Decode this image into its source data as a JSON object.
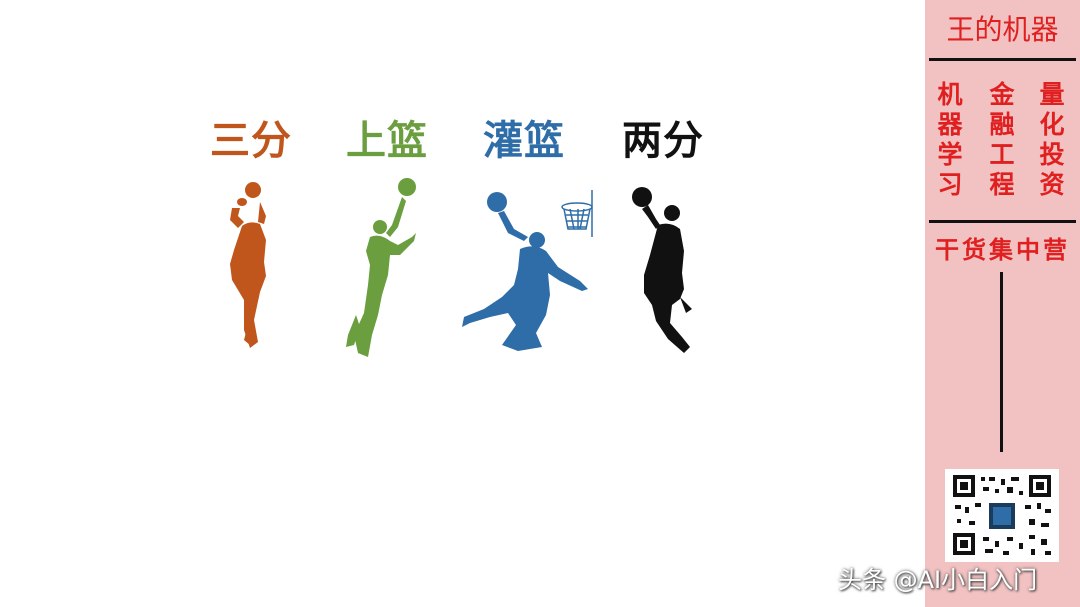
{
  "slide": {
    "labels": [
      {
        "text": "三分",
        "color": "#c0561c"
      },
      {
        "text": "上篮",
        "color": "#6a9e3f"
      },
      {
        "text": "灌篮",
        "color": "#2e6da8"
      },
      {
        "text": "两分",
        "color": "#111111"
      }
    ],
    "figures": [
      {
        "name": "three-point-player-icon",
        "color": "#c0561c"
      },
      {
        "name": "layup-player-icon",
        "color": "#6a9e3f"
      },
      {
        "name": "dunk-player-icon",
        "color": "#2e6da8"
      },
      {
        "name": "two-point-player-icon",
        "color": "#111111"
      }
    ]
  },
  "sidebar": {
    "brand": "王的机器",
    "columns": [
      "机器学习",
      "金融工程",
      "量化投资"
    ],
    "camp": "干货集中营",
    "accent": "#e02020",
    "background": "#f2c2c2"
  },
  "watermark": "头条 @AI小白入门"
}
